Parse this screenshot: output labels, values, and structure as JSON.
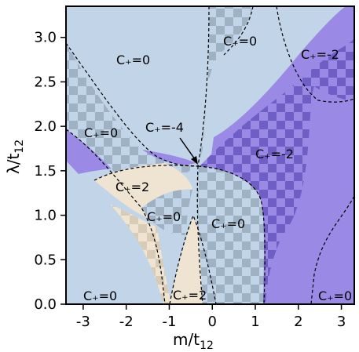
{
  "chart_data": {
    "type": "phase-diagram",
    "xlabel": "m/t",
    "xlabel_sub": "12",
    "ylabel": "λ/t",
    "ylabel_sub": "12",
    "xlim": [
      -3.4,
      3.3
    ],
    "ylim": [
      0.0,
      3.35
    ],
    "xticks": [
      -3,
      -2,
      -1,
      0,
      1,
      2,
      3
    ],
    "yticks": [
      0.0,
      0.5,
      1.0,
      1.5,
      2.0,
      2.5,
      3.0
    ],
    "ytick_labels": [
      "0.0",
      "0.5",
      "1.0",
      "1.5",
      "2.0",
      "2.5",
      "3.0"
    ],
    "regions": [
      {
        "label": "C₊=0",
        "x": -0.9,
        "y": 2.95
      },
      {
        "label": "C₊=0",
        "x": 0.55,
        "y": 3.15
      },
      {
        "label": "C₊=-2",
        "x": 2.35,
        "y": 2.98
      },
      {
        "label": "C₊=0",
        "x": -2.75,
        "y": 1.78
      },
      {
        "label": "C₊=-4",
        "x": -0.95,
        "y": 1.82
      },
      {
        "label": "C₊=-2",
        "x": 1.45,
        "y": 1.58
      },
      {
        "label": "C₊=2",
        "x": -1.85,
        "y": 1.17
      },
      {
        "label": "C₊=0",
        "x": -0.95,
        "y": 0.85
      },
      {
        "label": "C₊=0",
        "x": 0.45,
        "y": 0.75
      },
      {
        "label": "C₊=0",
        "x": -2.75,
        "y": 0.1
      },
      {
        "label": "C₊=2",
        "x": -0.45,
        "y": 0.1
      },
      {
        "label": "C₊=0",
        "x": 2.9,
        "y": 0.1
      }
    ],
    "arrow": {
      "from": [
        -0.8,
        1.76
      ],
      "to": [
        -0.35,
        1.6
      ]
    },
    "colors": {
      "background": "#c2d5e8",
      "checker_dark": "#9fb2c4",
      "purple": "#9a8ae6",
      "purple_dark": "#6f5ec4",
      "beige": "#efe4d1",
      "beige_dark": "#d9ccb6"
    },
    "grid": false
  }
}
